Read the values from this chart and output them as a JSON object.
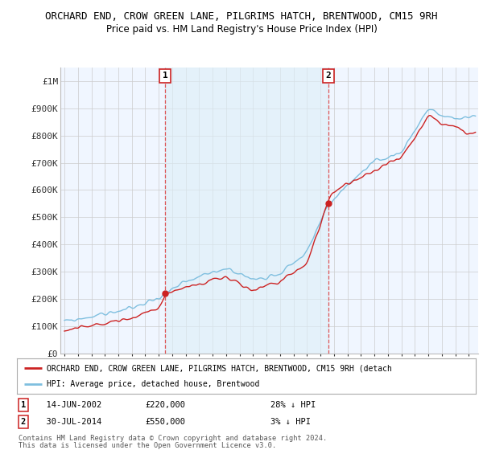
{
  "title": "ORCHARD END, CROW GREEN LANE, PILGRIMS HATCH, BRENTWOOD, CM15 9RH",
  "subtitle": "Price paid vs. HM Land Registry's House Price Index (HPI)",
  "ylim": [
    0,
    1050000
  ],
  "yticks": [
    0,
    100000,
    200000,
    300000,
    400000,
    500000,
    600000,
    700000,
    800000,
    900000,
    1000000
  ],
  "ytick_labels": [
    "£0",
    "£100K",
    "£200K",
    "£300K",
    "£400K",
    "£500K",
    "£600K",
    "£700K",
    "£800K",
    "£900K",
    "£1M"
  ],
  "hpi_color": "#7fbfdf",
  "price_color": "#cc2222",
  "vline_color": "#dd4444",
  "shade_color": "#ddeeff",
  "sale1_year": 2002.46,
  "sale2_year": 2014.58,
  "sale1_price": 220000,
  "sale2_price": 550000,
  "sale1_date": "14-JUN-2002",
  "sale2_date": "30-JUL-2014",
  "sale1_label": "28% ↓ HPI",
  "sale2_label": "3% ↓ HPI",
  "legend_line1": "ORCHARD END, CROW GREEN LANE, PILGRIMS HATCH, BRENTWOOD, CM15 9RH (detach",
  "legend_line2": "HPI: Average price, detached house, Brentwood",
  "footer1": "Contains HM Land Registry data © Crown copyright and database right 2024.",
  "footer2": "This data is licensed under the Open Government Licence v3.0.",
  "background_color": "#ffffff",
  "grid_color": "#cccccc",
  "xmin": 1994.7,
  "xmax": 2025.7
}
